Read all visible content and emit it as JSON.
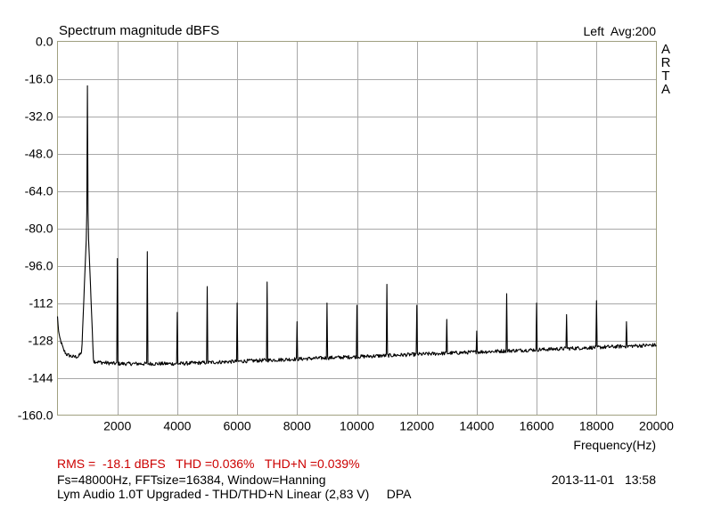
{
  "chart_data": {
    "type": "line",
    "title": "Spectrum magnitude dBFS",
    "channel_info": "Left  Avg:200",
    "brand": "ARTA",
    "xlabel": "Frequency(Hz)",
    "ylabel": "",
    "xlim": [
      0,
      20000
    ],
    "ylim": [
      -160,
      0
    ],
    "x_ticks": [
      2000,
      4000,
      6000,
      8000,
      10000,
      12000,
      14000,
      16000,
      18000,
      20000
    ],
    "x_tick_labels": [
      "2000",
      "4000",
      "6000",
      "8000",
      "10000",
      "12000",
      "14000",
      "16000",
      "18000",
      "20000"
    ],
    "y_ticks": [
      0,
      -16,
      -32,
      -48,
      -64,
      -80,
      -96,
      -112,
      -128,
      -144,
      -160
    ],
    "y_tick_labels": [
      "0.0",
      "-16.0",
      "-32.0",
      "-48.0",
      "-64.0",
      "-80.0",
      "-96.0",
      "-112",
      "-128",
      "-144",
      "-160.0"
    ],
    "grid": true,
    "line_color": "#000000",
    "noise_floor": {
      "x": [
        0,
        50,
        100,
        200,
        300,
        500,
        700,
        800,
        900,
        1200,
        1500,
        2000,
        3000,
        4000,
        5000,
        6000,
        8000,
        10000,
        12000,
        14000,
        16000,
        18000,
        20000
      ],
      "y": [
        -118,
        -126,
        -128,
        -132,
        -134,
        -135,
        -135,
        -133,
        -128,
        -137,
        -137.5,
        -138,
        -138,
        -138,
        -137.5,
        -137,
        -136,
        -135,
        -134,
        -133,
        -132,
        -131,
        -130
      ]
    },
    "peaks": {
      "x": [
        1000,
        2000,
        3000,
        4000,
        5000,
        6000,
        7000,
        8000,
        9000,
        10000,
        11000,
        12000,
        13000,
        14000,
        15000,
        16000,
        17000,
        18000,
        19000
      ],
      "y": [
        -19,
        -93,
        -90,
        -116,
        -105,
        -112,
        -103,
        -120,
        -112,
        -113,
        -104,
        -113,
        -119,
        -124,
        -108,
        -112,
        -117,
        -111,
        -120
      ]
    }
  },
  "footer": {
    "measurements": "RMS =  -18.1 dBFS   THD =0.036%   THD+N =0.039%",
    "settings": "Fs=48000Hz, FFTsize=16384, Window=Hanning",
    "datetime": "2013-11-01   13:58",
    "description": "Lym Audio 1.0T Upgraded - THD/THD+N Linear (2,83 V)     DPA"
  }
}
